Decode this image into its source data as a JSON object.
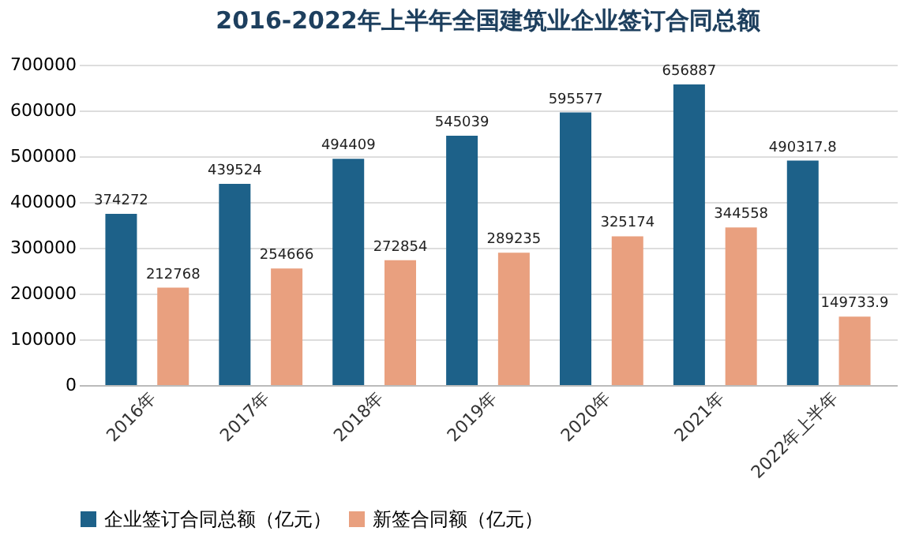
{
  "chart_data": {
    "type": "bar",
    "title": "2016-2022年上半年全国建筑业企业签订合同总额",
    "categories": [
      "2016年",
      "2017年",
      "2018年",
      "2019年",
      "2020年",
      "2021年",
      "2022年上半年"
    ],
    "series": [
      {
        "name": "企业签订合同总额（亿元）",
        "color": "#1d6189",
        "values": [
          374272,
          439524,
          494409,
          545039,
          595577,
          656887,
          490317.8
        ]
      },
      {
        "name": "新签合同额（亿元）",
        "color": "#e9a07f",
        "values": [
          212768,
          254666,
          272854,
          289235,
          325174,
          344558,
          149733.9
        ]
      }
    ],
    "ylim": [
      0,
      700000
    ],
    "yticks": [
      0,
      100000,
      200000,
      300000,
      400000,
      500000,
      600000,
      700000
    ],
    "grid": "y",
    "legend": "bottom",
    "data_labels": true
  }
}
